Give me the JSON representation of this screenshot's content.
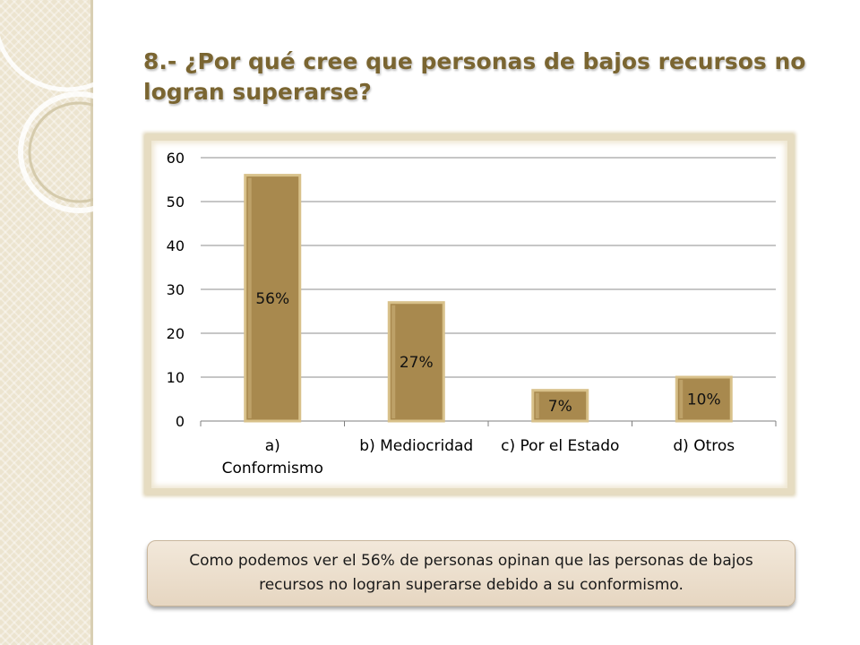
{
  "slide": {
    "title": "8.- ¿Por qué cree que personas de bajos recursos no logran superarse?",
    "note": "Como podemos ver el 56% de personas opinan que las personas de bajos recursos no logran superarse debido a su conformismo."
  },
  "colors": {
    "title": "#7a6531",
    "bar_fill": "#a8894e",
    "bar_edge": "#d8c18a",
    "sidebar": "#ece4cf",
    "frame": "#e6dcc1",
    "note_bg": "#ecdfcd"
  },
  "chart_data": {
    "type": "bar",
    "title": "",
    "xlabel": "",
    "ylabel": "",
    "categories": [
      "a) Conformismo",
      "b) Mediocridad",
      "c) Por el Estado",
      "d) Otros"
    ],
    "category_lines": [
      [
        "a)",
        "Conformismo"
      ],
      [
        "b) Mediocridad"
      ],
      [
        "c) Por el Estado"
      ],
      [
        "d) Otros"
      ]
    ],
    "values": [
      56,
      27,
      7,
      10
    ],
    "data_labels": [
      "56%",
      "27%",
      "7%",
      "10%"
    ],
    "ylim": [
      0,
      60
    ],
    "yticks": [
      0,
      10,
      20,
      30,
      40,
      50,
      60
    ],
    "grid": true,
    "legend": "none"
  }
}
